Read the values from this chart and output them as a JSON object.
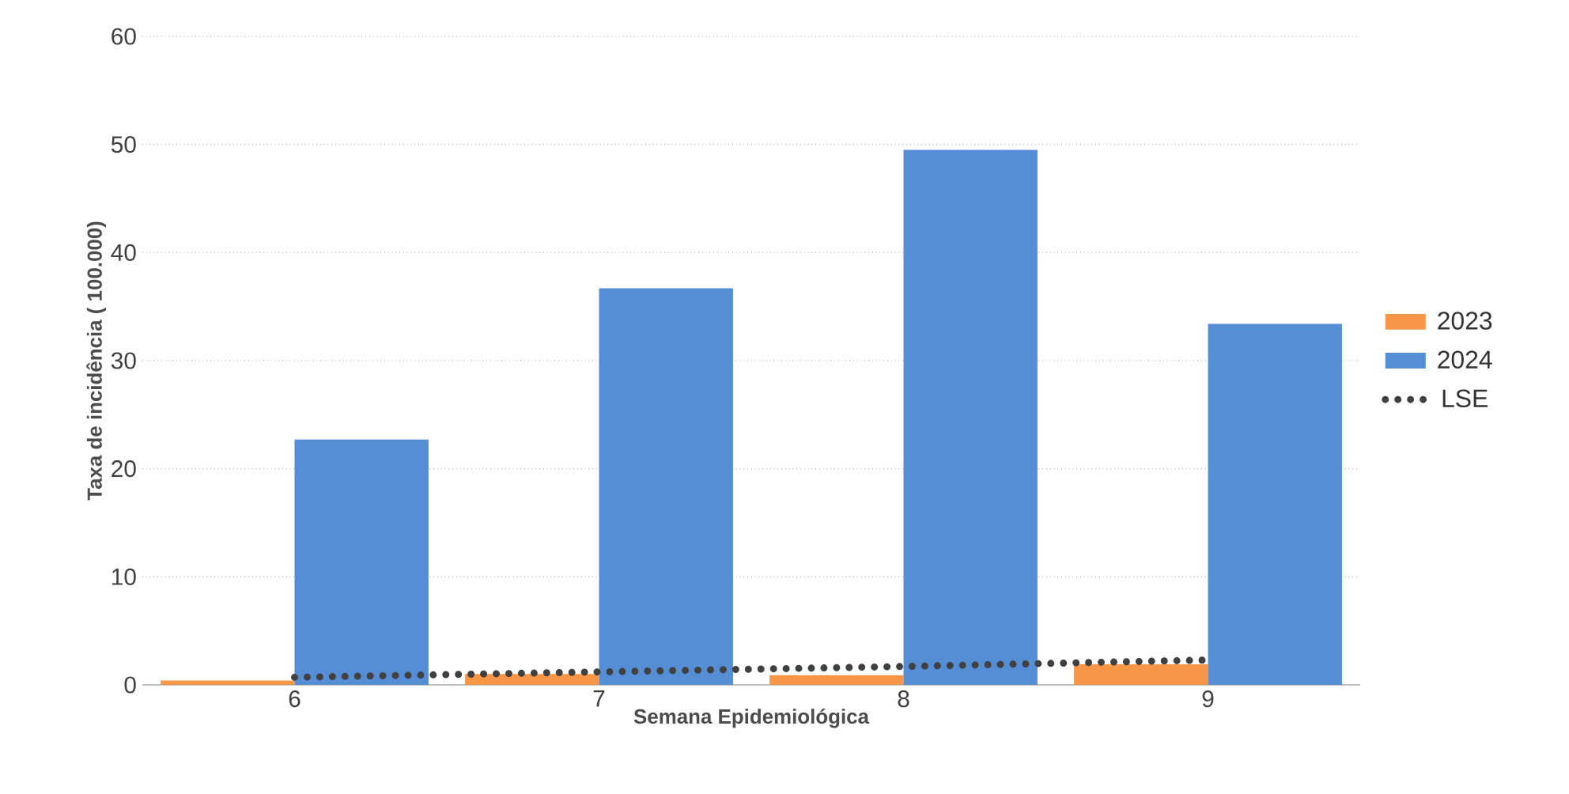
{
  "chart_data": {
    "type": "bar",
    "xlabel": "Semana Epidemiológica",
    "ylabel": "Taxa de incidência ( 100.000)",
    "categories": [
      "6",
      "7",
      "8",
      "9"
    ],
    "series": [
      {
        "name": "2023",
        "color": "#f79646",
        "values": [
          0.4,
          1.0,
          0.9,
          1.9
        ]
      },
      {
        "name": "2024",
        "color": "#558ed5",
        "values": [
          22.7,
          36.7,
          49.5,
          33.4
        ]
      },
      {
        "name": "LSE",
        "type": "line",
        "color": "#404040",
        "line_style": "dotted",
        "values": [
          0.7,
          1.2,
          1.7,
          2.3
        ]
      }
    ],
    "ylim": [
      0,
      60
    ],
    "yticks": [
      0,
      10,
      20,
      30,
      40,
      50,
      60
    ],
    "grid": "y",
    "legend": "right"
  }
}
